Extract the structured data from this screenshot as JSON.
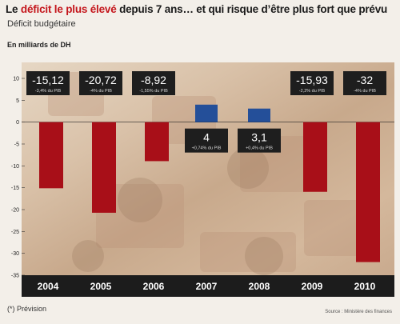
{
  "header": {
    "title_prefix": "Le ",
    "title_highlight": "déficit le plus élevé",
    "title_suffix": " depuis 7 ans… et qui risque d’être plus fort que prévu",
    "subtitle": "Déficit budgétaire",
    "units": "En milliards de DH"
  },
  "footer": {
    "note": "(*) Prévision",
    "source": "Source : Ministère des finances"
  },
  "colors": {
    "negative_bar": "#a80f18",
    "positive_bar": "#244f99",
    "axis_strip": "#1c1c1c",
    "label_box": "#1e1e1e"
  },
  "chart_data": {
    "type": "bar",
    "title": "",
    "ylabel": "",
    "ylim": [
      -35,
      10
    ],
    "y_ticks": [
      "10",
      "5",
      "0",
      "-5",
      "-10",
      "-15",
      "-20",
      "-25",
      "-30",
      "-35"
    ],
    "categories": [
      "2004",
      "2005",
      "2006",
      "2007",
      "2008",
      "2009",
      "2010"
    ],
    "values": [
      -15.12,
      -20.72,
      -8.92,
      4,
      3.1,
      -15.93,
      -32
    ],
    "value_labels": [
      "-15,12",
      "-20,72",
      "-8,92",
      "4",
      "3,1",
      "-15,93",
      "-32"
    ],
    "pib_labels": [
      "-3,4% du PIB",
      "-4% du PIB",
      "-1,55% du PIB",
      "+0,74% du PIB",
      "+0,4% du PIB",
      "-2,2% du PIB",
      "-4% du PIB"
    ],
    "grid": false,
    "legend": "none"
  }
}
